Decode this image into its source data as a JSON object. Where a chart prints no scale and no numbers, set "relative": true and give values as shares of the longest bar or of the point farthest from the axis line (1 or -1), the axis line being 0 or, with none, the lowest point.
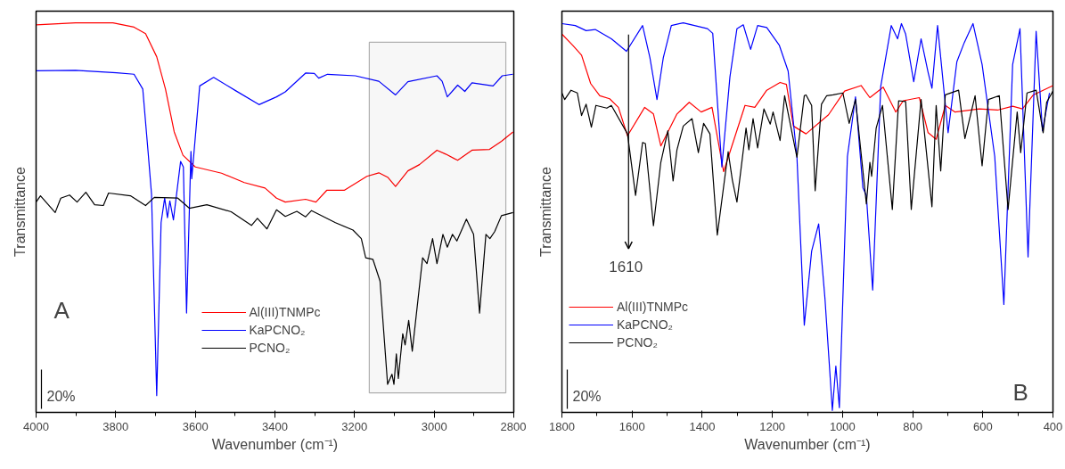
{
  "chart_data": [
    {
      "type": "line",
      "relative": true,
      "xlabel": "Wavenumber (cm⁻¹)",
      "ylabel": "Transmittance",
      "xlim": [
        4000,
        2800
      ],
      "xticks": [
        4000,
        3800,
        3600,
        3400,
        3200,
        3000,
        2800
      ],
      "tick_labels": "x",
      "grid": false,
      "legend": "bottom",
      "annotations": [
        "A",
        "20%"
      ],
      "bands": [
        {
          "axis": "x",
          "from": 3163,
          "to": 2820,
          "color": "#000000"
        }
      ],
      "series": [
        {
          "name": "Al(III)TNMPc",
          "color": "#ff0000",
          "x": [
            4000,
            3901,
            3807,
            3754,
            3725,
            3697,
            3675,
            3653,
            3631,
            3600,
            3534,
            3477,
            3425,
            3396,
            3374,
            3323,
            3297,
            3270,
            3226,
            3169,
            3139,
            3116,
            3097,
            3066,
            3037,
            2993,
            2971,
            2941,
            2905,
            2861,
            2831,
            2802
          ],
          "values": [
            0.995,
            1.0,
            1.0,
            0.989,
            0.972,
            0.913,
            0.83,
            0.72,
            0.66,
            0.63,
            0.614,
            0.59,
            0.576,
            0.55,
            0.54,
            0.547,
            0.54,
            0.57,
            0.57,
            0.606,
            0.615,
            0.603,
            0.58,
            0.62,
            0.636,
            0.673,
            0.663,
            0.647,
            0.673,
            0.675,
            0.696,
            0.72
          ]
        },
        {
          "name": "KaPCNO₂",
          "color": "#0000ff",
          "x": [
            4000,
            3901,
            3798,
            3754,
            3732,
            3719,
            3710,
            3697,
            3686,
            3677,
            3670,
            3664,
            3655,
            3637,
            3630,
            3622,
            3611,
            3609,
            3589,
            3554,
            3499,
            3440,
            3396,
            3374,
            3323,
            3301,
            3290,
            3268,
            3198,
            3139,
            3097,
            3066,
            2993,
            2980,
            2967,
            2941,
            2923,
            2905,
            2852,
            2829,
            2802
          ],
          "values": [
            0.877,
            0.878,
            0.872,
            0.868,
            0.83,
            0.673,
            0.56,
            0.043,
            0.487,
            0.55,
            0.5,
            0.543,
            0.494,
            0.644,
            0.63,
            0.255,
            0.67,
            0.6,
            0.838,
            0.86,
            0.826,
            0.79,
            0.81,
            0.823,
            0.871,
            0.87,
            0.858,
            0.868,
            0.864,
            0.85,
            0.815,
            0.849,
            0.864,
            0.85,
            0.81,
            0.84,
            0.824,
            0.846,
            0.838,
            0.864,
            0.868
          ]
        },
        {
          "name": "PCNO₂",
          "color": "#000000",
          "x": [
            4000,
            3989,
            3952,
            3938,
            3916,
            3897,
            3875,
            3853,
            3831,
            3818,
            3763,
            3725,
            3703,
            3644,
            3615,
            3571,
            3510,
            3459,
            3444,
            3420,
            3396,
            3374,
            3345,
            3323,
            3308,
            3248,
            3204,
            3183,
            3172,
            3154,
            3136,
            3117,
            3106,
            3101,
            3095,
            3090,
            3079,
            3073,
            3064,
            3055,
            3029,
            3018,
            3004,
            2993,
            2978,
            2967,
            2954,
            2943,
            2919,
            2901,
            2886,
            2870,
            2860,
            2848,
            2831,
            2802
          ],
          "values": [
            0.54,
            0.556,
            0.513,
            0.55,
            0.558,
            0.54,
            0.565,
            0.533,
            0.531,
            0.563,
            0.556,
            0.531,
            0.552,
            0.55,
            0.524,
            0.533,
            0.515,
            0.48,
            0.498,
            0.471,
            0.52,
            0.503,
            0.516,
            0.502,
            0.518,
            0.487,
            0.468,
            0.446,
            0.397,
            0.393,
            0.337,
            0.072,
            0.098,
            0.072,
            0.15,
            0.087,
            0.202,
            0.173,
            0.236,
            0.157,
            0.397,
            0.382,
            0.446,
            0.382,
            0.457,
            0.424,
            0.457,
            0.44,
            0.496,
            0.457,
            0.255,
            0.457,
            0.446,
            0.464,
            0.505,
            0.513
          ]
        }
      ]
    },
    {
      "type": "line",
      "relative": true,
      "xlabel": "Wavenumber (cm⁻¹)",
      "ylabel": "Transmittance",
      "xlim": [
        1800,
        400
      ],
      "xticks": [
        1800,
        1600,
        1400,
        1200,
        1000,
        800,
        600,
        400
      ],
      "tick_labels": "x",
      "grid": false,
      "legend": "bottom left",
      "annotations": [
        "B",
        "20%"
      ],
      "ref_lines": [
        {
          "axis": "x",
          "value": 1610,
          "label": "1610",
          "color": "#000000"
        }
      ],
      "series": [
        {
          "name": "Al(III)TNMPc",
          "color": "#ff0000",
          "x": [
            1800,
            1769,
            1744,
            1718,
            1692,
            1664,
            1639,
            1613,
            1564,
            1539,
            1518,
            1472,
            1437,
            1403,
            1372,
            1339,
            1278,
            1250,
            1216,
            1178,
            1160,
            1140,
            1104,
            1040,
            994,
            947,
            922,
            884,
            848,
            827,
            781,
            756,
            733,
            707,
            679,
            610,
            558,
            515,
            487,
            456,
            400
          ],
          "values": [
            0.971,
            0.942,
            0.917,
            0.844,
            0.813,
            0.805,
            0.783,
            0.71,
            0.783,
            0.766,
            0.684,
            0.766,
            0.796,
            0.771,
            0.783,
            0.618,
            0.788,
            0.783,
            0.827,
            0.847,
            0.842,
            0.735,
            0.715,
            0.764,
            0.825,
            0.839,
            0.808,
            0.835,
            0.771,
            0.8,
            0.808,
            0.718,
            0.701,
            0.788,
            0.771,
            0.779,
            0.776,
            0.786,
            0.779,
            0.815,
            0.839
          ]
        },
        {
          "name": "KaPCNO₂",
          "color": "#0000ff",
          "x": [
            1800,
            1762,
            1731,
            1705,
            1659,
            1616,
            1570,
            1549,
            1529,
            1511,
            1488,
            1454,
            1385,
            1370,
            1344,
            1321,
            1301,
            1283,
            1262,
            1242,
            1216,
            1180,
            1155,
            1130,
            1109,
            1088,
            1068,
            1050,
            1029,
            1019,
            1009,
            986,
            963,
            942,
            932,
            914,
            891,
            861,
            843,
            832,
            820,
            797,
            776,
            756,
            745,
            729,
            699,
            674,
            653,
            628,
            602,
            566,
            540,
            515,
            494,
            471,
            448,
            430,
            410
          ],
          "values": [
            0.998,
            0.993,
            0.98,
            0.983,
            0.959,
            0.927,
            0.993,
            0.91,
            0.803,
            0.91,
            0.993,
            1.0,
            0.985,
            0.973,
            0.63,
            0.861,
            0.985,
            0.995,
            0.932,
            0.993,
            0.988,
            0.942,
            0.876,
            0.657,
            0.224,
            0.414,
            0.484,
            0.292,
            0.005,
            0.119,
            0.012,
            0.657,
            0.81,
            0.577,
            0.557,
            0.314,
            0.837,
            0.993,
            0.959,
            0.998,
            0.971,
            0.849,
            0.959,
            0.873,
            0.832,
            0.993,
            0.718,
            0.9,
            0.949,
            0.998,
            0.893,
            0.657,
            0.277,
            0.893,
            0.985,
            0.399,
            0.978,
            0.723,
            0.82
          ]
        },
        {
          "name": "PCNO₂",
          "color": "#000000",
          "x": [
            1800,
            1792,
            1774,
            1756,
            1744,
            1731,
            1716,
            1703,
            1672,
            1659,
            1613,
            1590,
            1570,
            1562,
            1539,
            1518,
            1498,
            1483,
            1472,
            1454,
            1429,
            1411,
            1396,
            1378,
            1357,
            1326,
            1314,
            1301,
            1275,
            1267,
            1255,
            1242,
            1224,
            1206,
            1198,
            1178,
            1165,
            1130,
            1109,
            1104,
            1088,
            1078,
            1060,
            1045,
            1027,
            999,
            981,
            963,
            932,
            922,
            917,
            904,
            886,
            858,
            840,
            820,
            804,
            776,
            745,
            733,
            720,
            707,
            669,
            651,
            622,
            602,
            584,
            553,
            528,
            502,
            492,
            474,
            448,
            428,
            418,
            400
          ],
          "values": [
            0.82,
            0.803,
            0.827,
            0.82,
            0.762,
            0.791,
            0.732,
            0.788,
            0.781,
            0.788,
            0.715,
            0.557,
            0.693,
            0.69,
            0.479,
            0.642,
            0.723,
            0.594,
            0.674,
            0.735,
            0.754,
            0.667,
            0.742,
            0.715,
            0.455,
            0.669,
            0.596,
            0.54,
            0.73,
            0.674,
            0.754,
            0.679,
            0.779,
            0.74,
            0.771,
            0.698,
            0.813,
            0.655,
            0.813,
            0.815,
            0.788,
            0.569,
            0.791,
            0.813,
            0.815,
            0.82,
            0.742,
            0.803,
            0.535,
            0.642,
            0.606,
            0.73,
            0.788,
            0.521,
            0.8,
            0.798,
            0.521,
            0.803,
            0.528,
            0.788,
            0.62,
            0.815,
            0.827,
            0.703,
            0.813,
            0.633,
            0.803,
            0.813,
            0.521,
            0.771,
            0.667,
            0.82,
            0.827,
            0.718,
            0.796,
            0.825
          ]
        }
      ]
    }
  ]
}
